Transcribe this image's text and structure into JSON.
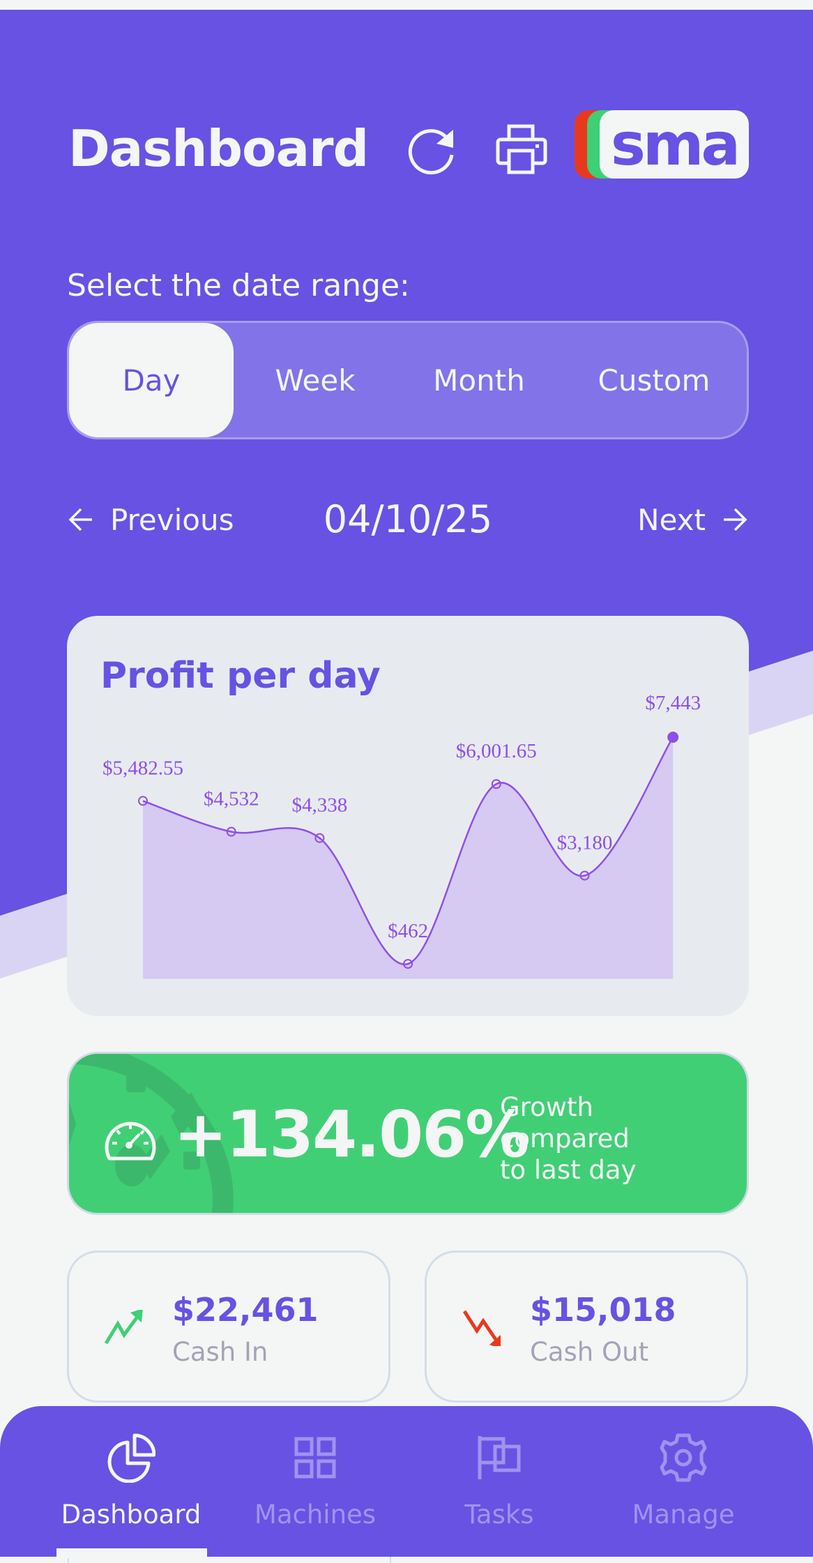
{
  "header": {
    "title": "Dashboard",
    "refresh_icon": "refresh-icon",
    "print_icon": "printer-icon",
    "logo_text": "sma",
    "logo_colors": {
      "red": "#e8391e",
      "green": "#3fcf74",
      "plate": "#f4f6f6"
    }
  },
  "date_range": {
    "label": "Select the date range:",
    "options": [
      {
        "label": "Day",
        "active": true
      },
      {
        "label": "Week",
        "active": false
      },
      {
        "label": "Month",
        "active": false
      },
      {
        "label": "Custom",
        "active": false
      }
    ]
  },
  "date_nav": {
    "previous_label": "Previous",
    "next_label": "Next",
    "current_date": "04/10/25"
  },
  "profit_chart": {
    "title": "Profit per day"
  },
  "chart_data": {
    "type": "area",
    "title": "Profit per day",
    "xlabel": "",
    "ylabel": "",
    "x": [
      1,
      2,
      3,
      4,
      5,
      6,
      7
    ],
    "series": [
      {
        "name": "Profit",
        "values": [
          5482.55,
          4532,
          4338,
          462,
          6001.65,
          3180,
          7443
        ],
        "labels": [
          "$5,482.55",
          "$4,532",
          "$4,338",
          "$462",
          "$6,001.65",
          "$3,180",
          "$7,443"
        ]
      }
    ],
    "grid": false,
    "legend": "none",
    "smooth": true,
    "highlight_last_point": true
  },
  "growth": {
    "value": "+134.06%",
    "caption_lines": [
      "Growth",
      "compared",
      "to last day"
    ],
    "icon": "speedometer-icon"
  },
  "stats": {
    "cash_in": {
      "value": "$22,461",
      "label": "Cash In",
      "icon": "trend-up-icon"
    },
    "cash_out": {
      "value": "$15,018",
      "label": "Cash Out",
      "icon": "trend-down-icon"
    }
  },
  "bottom_nav": {
    "tabs": [
      {
        "label": "Dashboard",
        "icon": "pie-chart-icon",
        "active": true
      },
      {
        "label": "Machines",
        "icon": "grid-icon",
        "active": false
      },
      {
        "label": "Tasks",
        "icon": "flags-icon",
        "active": false
      },
      {
        "label": "Manage",
        "icon": "gear-icon",
        "active": false
      }
    ]
  },
  "colors": {
    "primary": "#6752e3",
    "accent_purple": "#8f4fe9",
    "success": "#41cf75",
    "danger": "#e8391e",
    "background": "#f4f6f6",
    "card": "#e7ebf0"
  }
}
